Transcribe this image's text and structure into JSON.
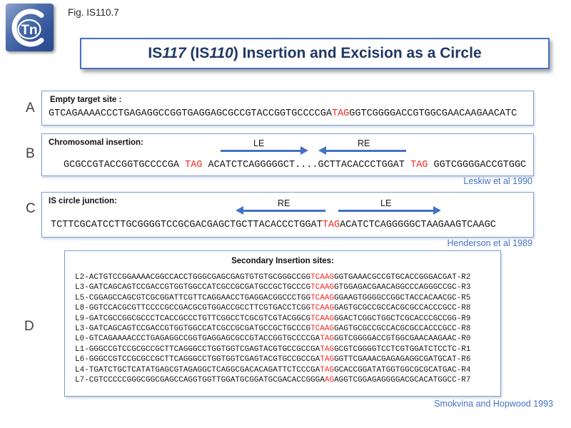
{
  "colors": {
    "accent_blue": "#4472C4",
    "highlight_red": "#EE2B24",
    "title_navy": "#1F3864"
  },
  "logo": {
    "c": "C",
    "tn": "Tn"
  },
  "fig_label": "Fig. IS110.7",
  "title": {
    "seg1": "IS",
    "seg2": "117",
    "seg3": " (IS",
    "seg4": "110",
    "seg5": ") Insertion and Excision as a Circle"
  },
  "panel_a": {
    "label": "A",
    "heading": "Empty target site :",
    "seq": [
      {
        "t": "GTCAGAAAACCCTGAGAGGCCGGTGAGGAGCGCCGTACCGGTGCCCCGA",
        "red": false
      },
      {
        "t": "TAG",
        "red": true
      },
      {
        "t": "GGTCGGGGACCGTGGCGAACAAGAACATC",
        "red": false
      }
    ]
  },
  "panel_b": {
    "label": "B",
    "heading": "Chromosomal insertion:",
    "arrows": [
      {
        "label": "LE"
      },
      {
        "label": "RE"
      }
    ],
    "seq": [
      {
        "t": "GCGCCGTACCGGTGCCCCGA ",
        "red": false
      },
      {
        "t": "TAG",
        "red": true
      },
      {
        "t": " ACATCTCAGGGGGCT....GCTTACACCCTGGAT ",
        "red": false
      },
      {
        "t": "TAG",
        "red": true
      },
      {
        "t": " GGTCGGGGACCGTGGC",
        "red": false
      }
    ],
    "credit": "Leskiw et al 1990"
  },
  "panel_c": {
    "label": "C",
    "heading": "IS circle junction:",
    "arrows": [
      {
        "label": "RE"
      },
      {
        "label": "LE"
      }
    ],
    "seq": [
      {
        "t": "TCTTCGCATCCTTGCGGGGTCCGCGACGAGCTGCTTACACCCTGGAT",
        "red": false
      },
      {
        "t": "TAG",
        "red": true
      },
      {
        "t": "ACATCTCAGGGGGCTAAGAAGTCAAGC",
        "red": false
      }
    ],
    "credit": "Henderson et al 1989"
  },
  "panel_d": {
    "label": "D",
    "heading": "Secondary Insertion sites:",
    "rows": [
      [
        {
          "t": "L2-ACTGTCCGGAAAACGGCCACCTGGGCGAGCGAGTGTGTGCGGGCCGG",
          "red": false
        },
        {
          "t": "TCAAG",
          "red": true
        },
        {
          "t": "GGTGAAACGCCGTGCACCGGGACGAT-R2",
          "red": false
        }
      ],
      [
        {
          "t": "L3-GATCAGCAGTCCGACCGTGGTGGCCATCGCCGCGATGCCGCTGCCCG",
          "red": false
        },
        {
          "t": "TCAAG",
          "red": true
        },
        {
          "t": "GTGGAGACGAACAGGCCCAGGGCCGC-R3",
          "red": false
        }
      ],
      [
        {
          "t": "L5-CGGAGCCAGCGTCGCGGATTCGTTCAGGAACCTGAGGACGGCCCTGG",
          "red": false
        },
        {
          "t": "TCAAG",
          "red": true
        },
        {
          "t": "GGAAGTGGGGCCGGCTACCACAACGC-R5",
          "red": false
        }
      ],
      [
        {
          "t": "L8-GGTCCACGCGTTCCCCGCCGACGCGTGGACCGCCTTCGTGACCTCGG",
          "red": false
        },
        {
          "t": "TCAAG",
          "red": true
        },
        {
          "t": "GAGTGCGCCGCCACGCGCCACCCGCC-R8",
          "red": false
        }
      ],
      [
        {
          "t": "L9-GATCGCCGGCGCCCTCACCGCCCTGTTCGGCCTCGCGTCGTACGGCG",
          "red": false
        },
        {
          "t": "TCAAG",
          "red": true
        },
        {
          "t": "GGACTCGGCTGGCTCGCACCCGCCGG-R9",
          "red": false
        }
      ],
      [
        {
          "t": "L3-GATCAGCAGTCCGACCGTGGTGGCCATCGCCGCGATGCCGCTGCCCG",
          "red": false
        },
        {
          "t": "TCAAG",
          "red": true
        },
        {
          "t": "GAGTGCGCCGCCACGCGCCACCCGCC-R8",
          "red": false
        }
      ],
      [
        {
          "t": "L0-GTCAGAAAACCCTGAGAGGCCGGTGAGGAGCGCCGTACCGGTGCCCCGA",
          "red": false
        },
        {
          "t": "TAG",
          "red": true
        },
        {
          "t": "GGTCGGGGACCGTGGCGAACAAGAAC-R0",
          "red": false
        }
      ],
      [
        {
          "t": "L1-GGGCCGTCCGCGCCGCTTCAGGGCCTGGTGGTCGAGTACGTGCCGCCGA",
          "red": false
        },
        {
          "t": "TAG",
          "red": true
        },
        {
          "t": "GCGTCGGGGTCCTCGTGGATCTCCTC-R1",
          "red": false
        }
      ],
      [
        {
          "t": "L6-GGGCCGTCCGCGCCGCTTCAGGGCCTGGTGGTCGAGTACGTGCCGCCGA",
          "red": false
        },
        {
          "t": "TAG",
          "red": true
        },
        {
          "t": "GGTTCGAAACGAGAGAGGCGATGCAT-R6",
          "red": false
        }
      ],
      [
        {
          "t": "L4-TGATCTGCTCATATGAGCGTAGAGGCTCAGGCGACACAGATTCTCCCGA",
          "red": false
        },
        {
          "t": "TAG",
          "red": true
        },
        {
          "t": "GCACCGGATATGGTGGCGCGCATGAC-R4",
          "red": false
        }
      ],
      [
        {
          "t": "L7-CGTCCCCCGGGCGGCGAGCCAGGTGGTTGGATGCGGATGCGACACCGGGA",
          "red": false
        },
        {
          "t": "AG",
          "red": true
        },
        {
          "t": "AGGTCGGAGAGGGGACGCACATGGCC-R7",
          "red": false
        }
      ]
    ],
    "credit": "Smokvina and Hopwood 1993"
  }
}
